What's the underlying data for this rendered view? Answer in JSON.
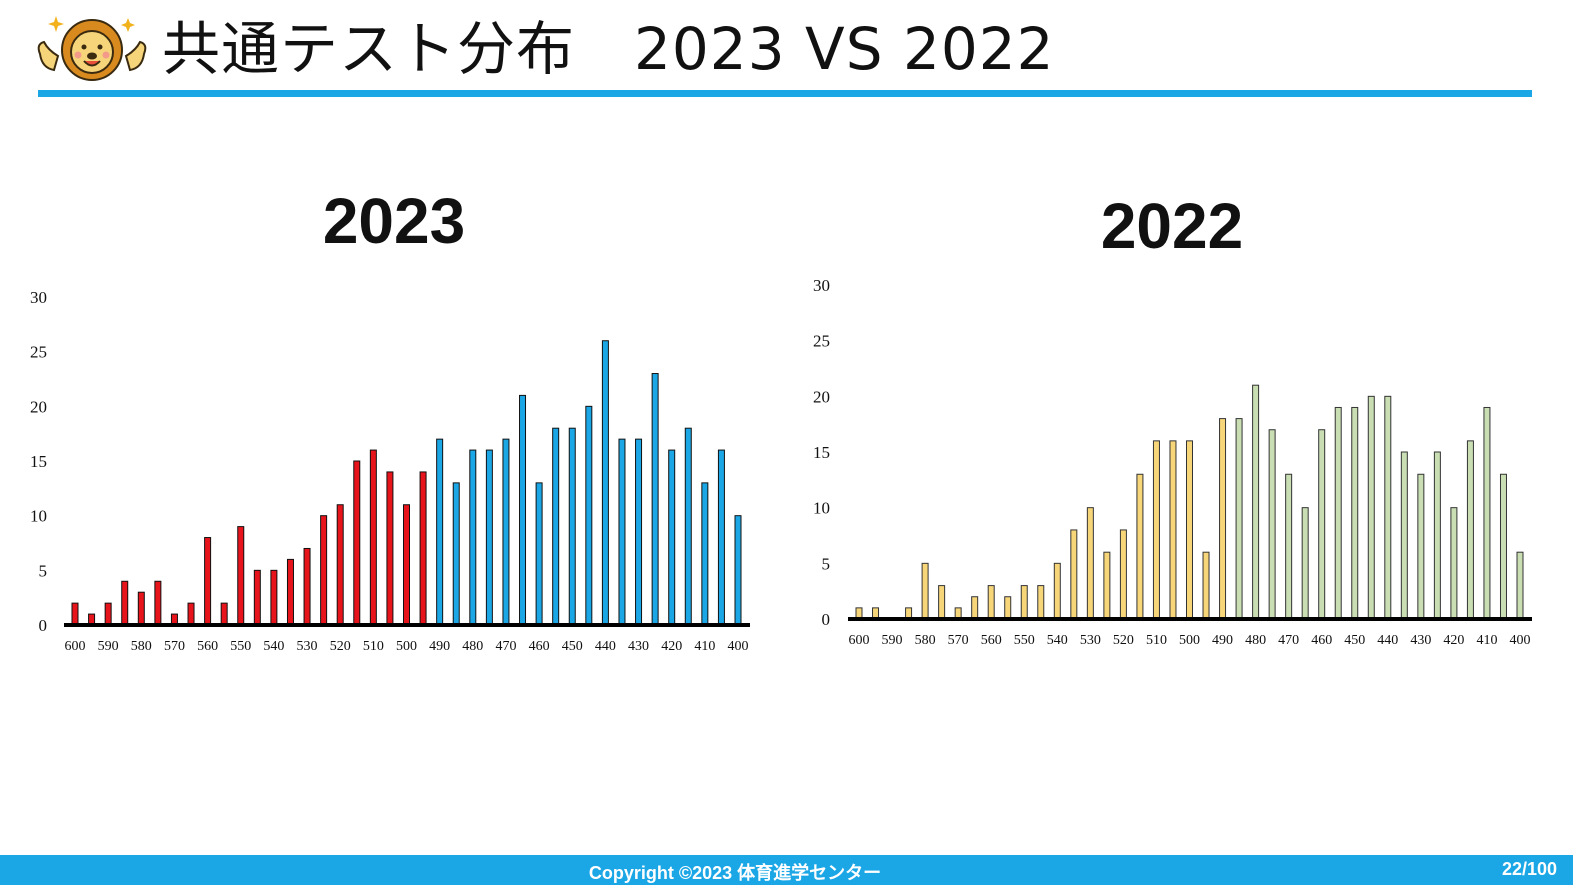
{
  "header": {
    "title": "共通テスト分布　2023 VS 2022",
    "mascot_icon": "lion-mascot-icon"
  },
  "footer": {
    "copyright": "Copyright ©2023 体育進学センター",
    "page_number": "22/100"
  },
  "colors": {
    "accent": "#1ba7e6",
    "red_bar": "#e8141b",
    "blue_bar": "#1ba7e6",
    "yellow_bar": "#f7d67a",
    "green_bar": "#c9dfb3"
  },
  "chart_data": [
    {
      "type": "bar",
      "title": "2023",
      "x": [
        600,
        595,
        590,
        585,
        580,
        575,
        570,
        565,
        560,
        555,
        550,
        545,
        540,
        535,
        530,
        525,
        520,
        515,
        510,
        505,
        500,
        495,
        490,
        485,
        480,
        475,
        470,
        465,
        460,
        455,
        450,
        445,
        440,
        435,
        430,
        425,
        420,
        415,
        410,
        405,
        400
      ],
      "tick_labels": [
        "600",
        "590",
        "580",
        "570",
        "560",
        "550",
        "540",
        "530",
        "520",
        "510",
        "500",
        "490",
        "480",
        "470",
        "460",
        "450",
        "440",
        "430",
        "420",
        "410",
        "400"
      ],
      "values": [
        2,
        1,
        2,
        4,
        3,
        4,
        1,
        2,
        8,
        2,
        9,
        5,
        5,
        6,
        7,
        10,
        11,
        15,
        16,
        14,
        11,
        14,
        17,
        13,
        16,
        16,
        17,
        21,
        13,
        18,
        18,
        20,
        26,
        17,
        17,
        23,
        16,
        18,
        13,
        16,
        10
      ],
      "bar_colors": [
        "red",
        "red",
        "red",
        "red",
        "red",
        "red",
        "red",
        "red",
        "red",
        "red",
        "red",
        "red",
        "red",
        "red",
        "red",
        "red",
        "red",
        "red",
        "red",
        "red",
        "red",
        "red",
        "blue",
        "blue",
        "blue",
        "blue",
        "blue",
        "blue",
        "blue",
        "blue",
        "blue",
        "blue",
        "blue",
        "blue",
        "blue",
        "blue",
        "blue",
        "blue",
        "blue",
        "blue",
        "blue"
      ],
      "yticks": [
        0,
        5,
        10,
        15,
        20,
        25,
        30
      ],
      "ylim": [
        0,
        30
      ],
      "grid": false,
      "legend": "none"
    },
    {
      "type": "bar",
      "title": "2022",
      "x": [
        600,
        595,
        590,
        585,
        580,
        575,
        570,
        565,
        560,
        555,
        550,
        545,
        540,
        535,
        530,
        525,
        520,
        515,
        510,
        505,
        500,
        495,
        490,
        485,
        480,
        475,
        470,
        465,
        460,
        455,
        450,
        445,
        440,
        435,
        430,
        425,
        420,
        415,
        410,
        405,
        400
      ],
      "tick_labels": [
        "600",
        "590",
        "580",
        "570",
        "560",
        "550",
        "540",
        "530",
        "520",
        "510",
        "500",
        "490",
        "480",
        "470",
        "460",
        "450",
        "440",
        "430",
        "420",
        "410",
        "400"
      ],
      "values": [
        1,
        1,
        0,
        1,
        5,
        3,
        1,
        2,
        3,
        2,
        3,
        3,
        5,
        8,
        10,
        6,
        8,
        13,
        16,
        16,
        16,
        6,
        18,
        18,
        21,
        17,
        13,
        10,
        17,
        19,
        19,
        20,
        20,
        15,
        13,
        15,
        10,
        16,
        19,
        13,
        6
      ],
      "bar_colors": [
        "yellow",
        "yellow",
        "yellow",
        "yellow",
        "yellow",
        "yellow",
        "yellow",
        "yellow",
        "yellow",
        "yellow",
        "yellow",
        "yellow",
        "yellow",
        "yellow",
        "yellow",
        "yellow",
        "yellow",
        "yellow",
        "yellow",
        "yellow",
        "yellow",
        "yellow",
        "yellow",
        "green",
        "green",
        "green",
        "green",
        "green",
        "green",
        "green",
        "green",
        "green",
        "green",
        "green",
        "green",
        "green",
        "green",
        "green",
        "green",
        "green",
        "green"
      ],
      "yticks": [
        0,
        5,
        10,
        15,
        20,
        25,
        30
      ],
      "ylim": [
        0,
        30
      ],
      "grid": false,
      "legend": "none"
    }
  ]
}
